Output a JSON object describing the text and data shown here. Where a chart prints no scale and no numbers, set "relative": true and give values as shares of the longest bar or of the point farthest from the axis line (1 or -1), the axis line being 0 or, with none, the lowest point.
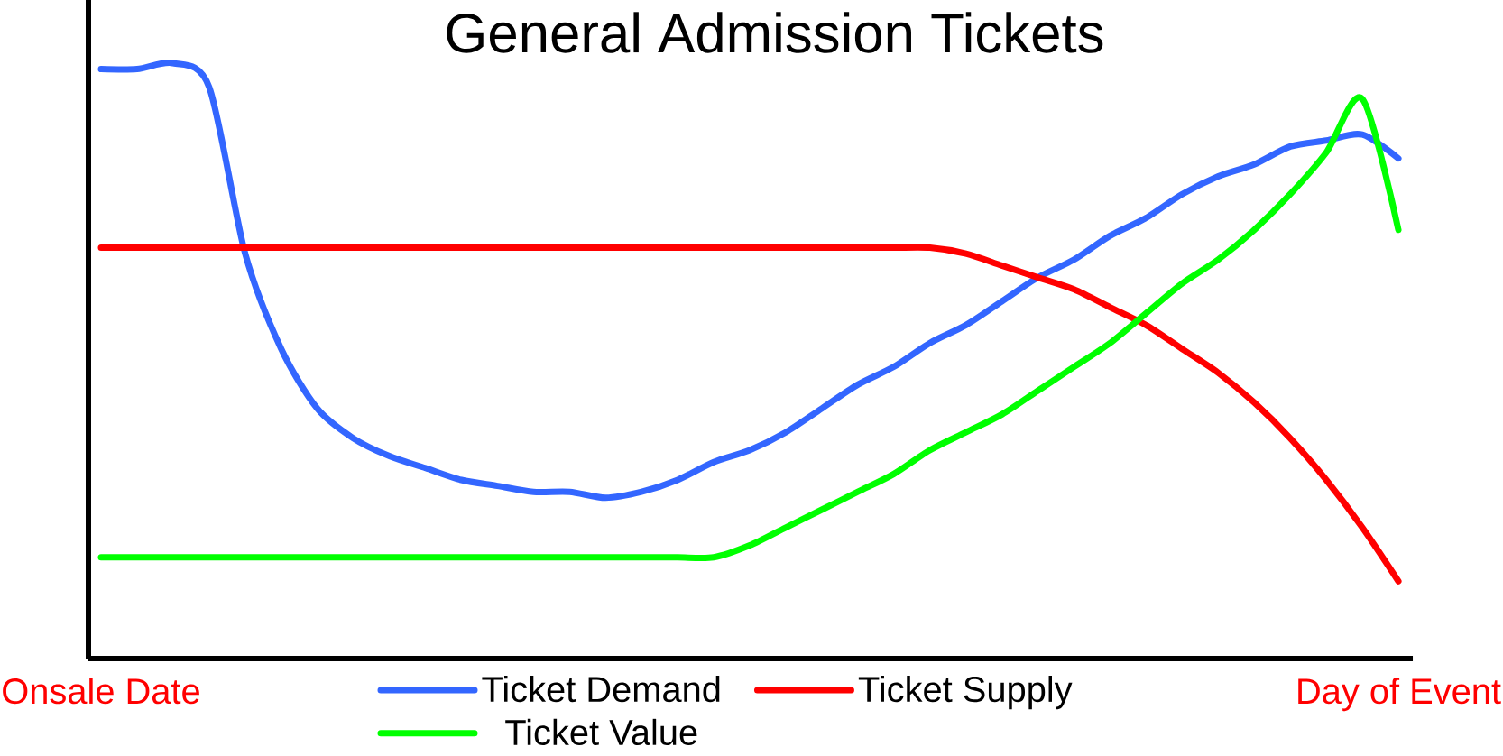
{
  "chart_data": {
    "type": "line",
    "title": "General Admission Tickets",
    "relative": true,
    "categories": [
      "Onsale Date",
      null,
      null,
      null,
      null,
      null,
      null,
      null,
      null,
      null,
      null,
      null,
      null,
      null,
      null,
      null,
      null,
      null,
      null,
      null,
      null,
      null,
      null,
      null,
      null,
      null,
      null,
      null,
      null,
      null,
      null,
      null,
      null,
      null,
      null,
      null,
      "Day of Event"
    ],
    "legend": "bottom",
    "marker": "none",
    "line_style": "solid",
    "series": [
      {
        "name": "Ticket Demand",
        "color": "#3366ff",
        "values": [
          0.99,
          0.99,
          1.0,
          0.96,
          0.68,
          0.52,
          0.42,
          0.37,
          0.34,
          0.32,
          0.3,
          0.29,
          0.28,
          0.28,
          0.27,
          0.28,
          0.3,
          0.33,
          0.35,
          0.38,
          0.42,
          0.46,
          0.49,
          0.53,
          0.56,
          0.6,
          0.64,
          0.67,
          0.71,
          0.74,
          0.78,
          0.81,
          0.83,
          0.86,
          0.87,
          0.88,
          0.84
        ]
      },
      {
        "name": "Ticket Supply",
        "color": "#ff0000",
        "values": [
          0.69,
          0.69,
          0.69,
          0.69,
          0.69,
          0.69,
          0.69,
          0.69,
          0.69,
          0.69,
          0.69,
          0.69,
          0.69,
          0.69,
          0.69,
          0.69,
          0.69,
          0.69,
          0.69,
          0.69,
          0.69,
          0.69,
          0.69,
          0.69,
          0.68,
          0.66,
          0.64,
          0.62,
          0.59,
          0.56,
          0.52,
          0.48,
          0.43,
          0.37,
          0.3,
          0.22,
          0.13
        ]
      },
      {
        "name": "Ticket Value",
        "color": "#00ff00",
        "values": [
          0.17,
          0.17,
          0.17,
          0.17,
          0.17,
          0.17,
          0.17,
          0.17,
          0.17,
          0.17,
          0.17,
          0.17,
          0.17,
          0.17,
          0.17,
          0.17,
          0.17,
          0.17,
          0.19,
          0.22,
          0.25,
          0.28,
          0.31,
          0.35,
          0.38,
          0.41,
          0.45,
          0.49,
          0.53,
          0.58,
          0.63,
          0.67,
          0.72,
          0.78,
          0.85,
          0.94,
          0.72
        ]
      }
    ]
  }
}
